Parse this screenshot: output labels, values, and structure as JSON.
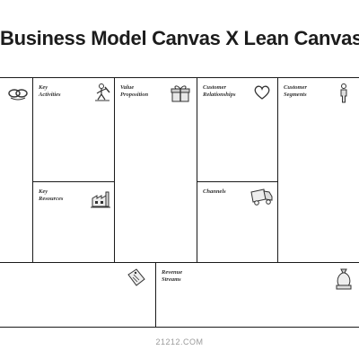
{
  "title": "Business Model Canvas X Lean Canvas",
  "blocks": {
    "key_partners": {
      "label": "",
      "icon": "chain-link-icon"
    },
    "key_activities": {
      "label": "Key\nActivities",
      "icon": "worker-icon"
    },
    "key_resources": {
      "label": "Key\nResources",
      "icon": "factory-icon"
    },
    "value_proposition": {
      "label": "Value\nProposition",
      "icon": "gift-icon"
    },
    "customer_relationships": {
      "label": "Customer\nRelationships",
      "icon": "heart-icon"
    },
    "channels": {
      "label": "Channels",
      "icon": "truck-icon"
    },
    "customer_segments": {
      "label": "Customer\nSegments",
      "icon": "person-icon"
    },
    "cost_structure": {
      "label": "",
      "icon": "price-tag-icon"
    },
    "revenue_streams": {
      "label": "Revenue\nStreams",
      "icon": "money-bag-icon"
    }
  },
  "footer": "21212.COM"
}
